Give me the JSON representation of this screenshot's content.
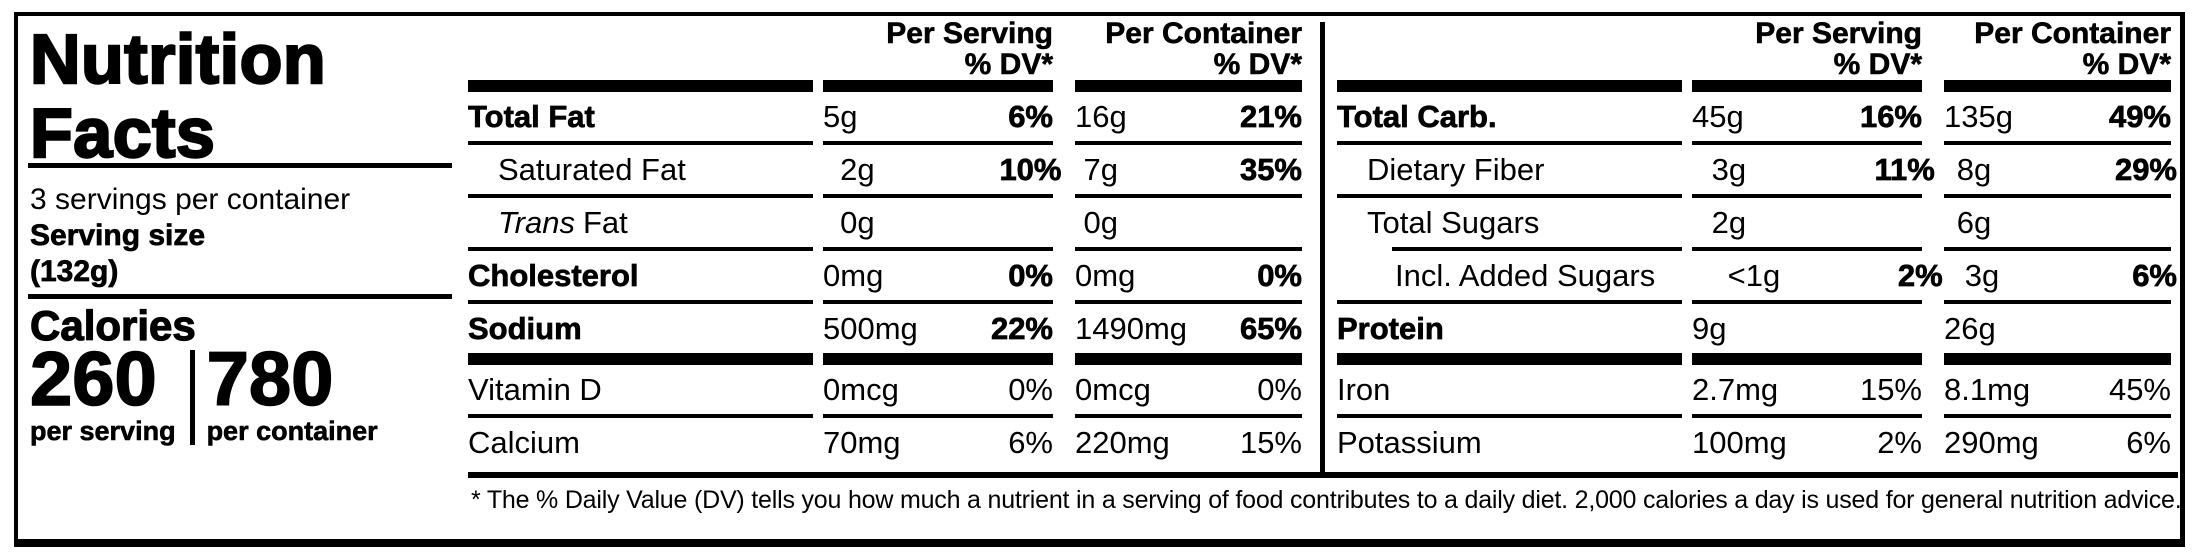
{
  "colors": {
    "ink": "#000000",
    "paper": "#ffffff"
  },
  "label_panel": {
    "title_line1": "Nutrition",
    "title_line2": "Facts",
    "servings_per_container": "3 servings per container",
    "serving_size_label": "Serving size",
    "serving_size_value": "(132g)",
    "calories_heading": "Calories",
    "calories": [
      {
        "value": "260",
        "caption": "per serving"
      },
      {
        "value": "780",
        "caption": "per container"
      }
    ]
  },
  "column_headers": {
    "per_serving": "Per Serving",
    "per_container": "Per Container",
    "percent_dv": "% DV*"
  },
  "nutrient_panels": [
    {
      "rows": [
        {
          "label": "Total Fat",
          "ps_amount": "5g",
          "ps_dv": "6%",
          "pc_amount": "16g",
          "pc_dv": "21%"
        },
        {
          "label": "Saturated Fat",
          "ps_amount": "2g",
          "ps_dv": "10%",
          "pc_amount": "7g",
          "pc_dv": "35%"
        },
        {
          "label_italic": "Trans",
          "label": "Fat",
          "ps_amount": "0g",
          "ps_dv": "",
          "pc_amount": "0g",
          "pc_dv": ""
        },
        {
          "label": "Cholesterol",
          "ps_amount": "0mg",
          "ps_dv": "0%",
          "pc_amount": "0mg",
          "pc_dv": "0%"
        },
        {
          "label": "Sodium",
          "ps_amount": "500mg",
          "ps_dv": "22%",
          "pc_amount": "1490mg",
          "pc_dv": "65%"
        },
        {
          "label": "Vitamin D",
          "ps_amount": "0mcg",
          "ps_dv": "0%",
          "pc_amount": "0mcg",
          "pc_dv": "0%"
        },
        {
          "label": "Calcium",
          "ps_amount": "70mg",
          "ps_dv": "6%",
          "pc_amount": "220mg",
          "pc_dv": "15%"
        }
      ]
    },
    {
      "rows": [
        {
          "label": "Total Carb.",
          "ps_amount": "45g",
          "ps_dv": "16%",
          "pc_amount": "135g",
          "pc_dv": "49%"
        },
        {
          "label": "Dietary Fiber",
          "ps_amount": "3g",
          "ps_dv": "11%",
          "pc_amount": "8g",
          "pc_dv": "29%"
        },
        {
          "label": "Total Sugars",
          "ps_amount": "2g",
          "ps_dv": "",
          "pc_amount": "6g",
          "pc_dv": ""
        },
        {
          "label": "Incl. Added Sugars",
          "ps_amount": "<1g",
          "ps_dv": "2%",
          "pc_amount": "3g",
          "pc_dv": "6%"
        },
        {
          "label": "Protein",
          "ps_amount": "9g",
          "ps_dv": "",
          "pc_amount": "26g",
          "pc_dv": ""
        },
        {
          "label": "Iron",
          "ps_amount": "2.7mg",
          "ps_dv": "15%",
          "pc_amount": "8.1mg",
          "pc_dv": "45%"
        },
        {
          "label": "Potassium",
          "ps_amount": "100mg",
          "ps_dv": "2%",
          "pc_amount": "290mg",
          "pc_dv": "6%"
        }
      ]
    }
  ],
  "footnote": "* The % Daily Value (DV) tells you how much a nutrient in a serving of food contributes to a daily diet. 2,000 calories a day is used for general nutrition advice."
}
